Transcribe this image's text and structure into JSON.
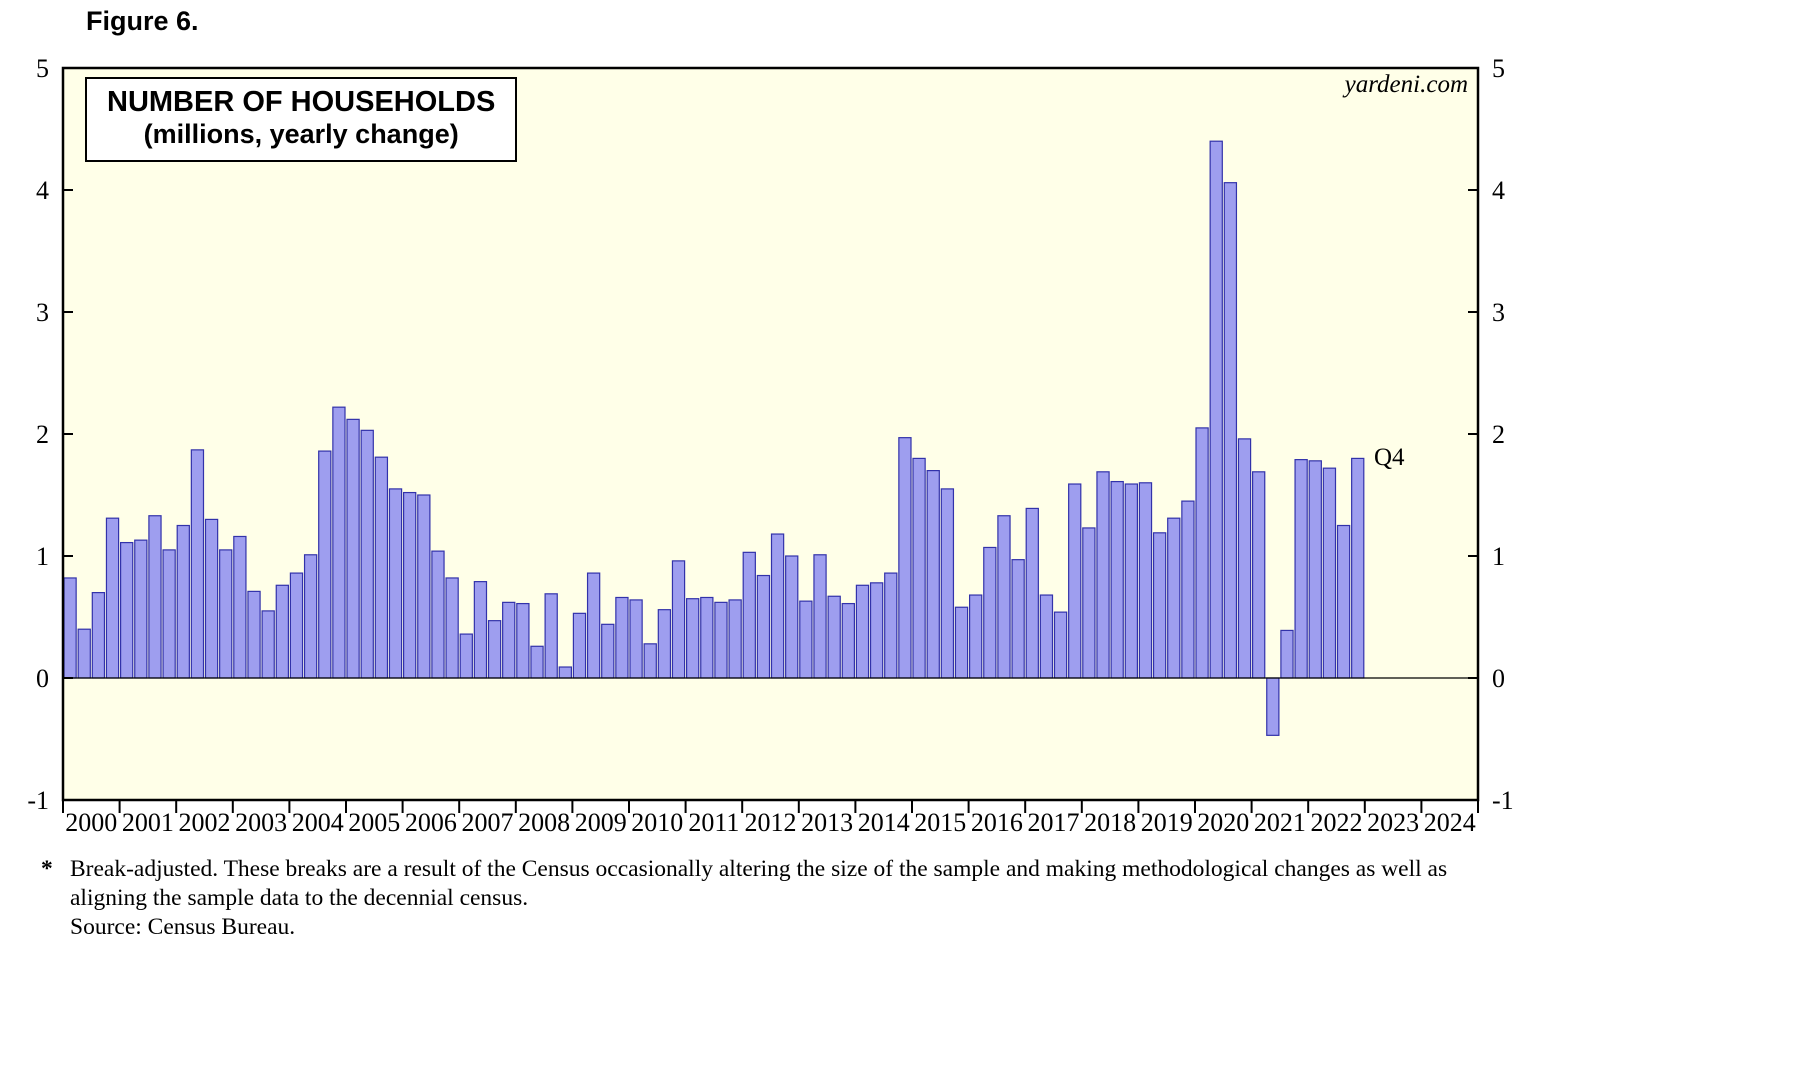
{
  "figure_label": "Figure 6.",
  "title_line1": "NUMBER OF HOUSEHOLDS",
  "title_line2": "(millions, yearly change)",
  "watermark": "yardeni.com",
  "annotation_last_bar": "Q4",
  "footnote": {
    "marker": "*",
    "line1": "Break-adjusted. These breaks are a result of the Census occasionally altering the size of the sample and making methodological changes as well as",
    "line2": "aligning the sample data to the decennial census.",
    "source": "Source: Census Bureau."
  },
  "chart_data": {
    "type": "bar",
    "title": "NUMBER OF HOUSEHOLDS (millions, yearly change)",
    "frequency": "quarterly",
    "start": "2000Q1",
    "end": "2022Q4",
    "ylim": [
      -1,
      5
    ],
    "y_ticks": [
      -1,
      0,
      1,
      2,
      3,
      4,
      5
    ],
    "x_range_years": [
      2000,
      2025
    ],
    "x_tick_labels": [
      "2000",
      "2001",
      "2002",
      "2003",
      "2004",
      "2005",
      "2006",
      "2007",
      "2008",
      "2009",
      "2010",
      "2011",
      "2012",
      "2013",
      "2014",
      "2015",
      "2016",
      "2017",
      "2018",
      "2019",
      "2020",
      "2021",
      "2022",
      "2023",
      "2024"
    ],
    "grid": false,
    "legend": "none",
    "values": [
      0.82,
      0.4,
      0.7,
      1.31,
      1.11,
      1.13,
      1.33,
      1.05,
      1.25,
      1.87,
      1.3,
      1.05,
      1.16,
      0.71,
      0.55,
      0.76,
      0.86,
      1.01,
      1.86,
      2.22,
      2.12,
      2.03,
      1.81,
      1.55,
      1.52,
      1.5,
      1.04,
      0.82,
      0.36,
      0.79,
      0.47,
      0.62,
      0.61,
      0.26,
      0.69,
      0.09,
      0.53,
      0.86,
      0.44,
      0.66,
      0.64,
      0.28,
      0.56,
      0.96,
      0.65,
      0.66,
      0.62,
      0.64,
      1.03,
      0.84,
      1.18,
      1.0,
      0.63,
      1.01,
      0.67,
      0.61,
      0.76,
      0.78,
      0.86,
      1.97,
      1.8,
      1.7,
      1.55,
      0.58,
      0.68,
      1.07,
      1.33,
      0.97,
      1.39,
      0.68,
      0.54,
      1.59,
      1.23,
      1.69,
      1.61,
      1.59,
      1.6,
      1.19,
      1.31,
      1.45,
      2.05,
      4.4,
      4.06,
      1.96,
      1.69,
      -0.47,
      0.39,
      1.79,
      1.78,
      1.72,
      1.25,
      1.8
    ],
    "colors": {
      "plot_bg": "#FFFFE8",
      "bar_fill": "#9E9EEF",
      "bar_stroke": "#3232AA",
      "axis": "#000000",
      "text": "#000000"
    }
  }
}
